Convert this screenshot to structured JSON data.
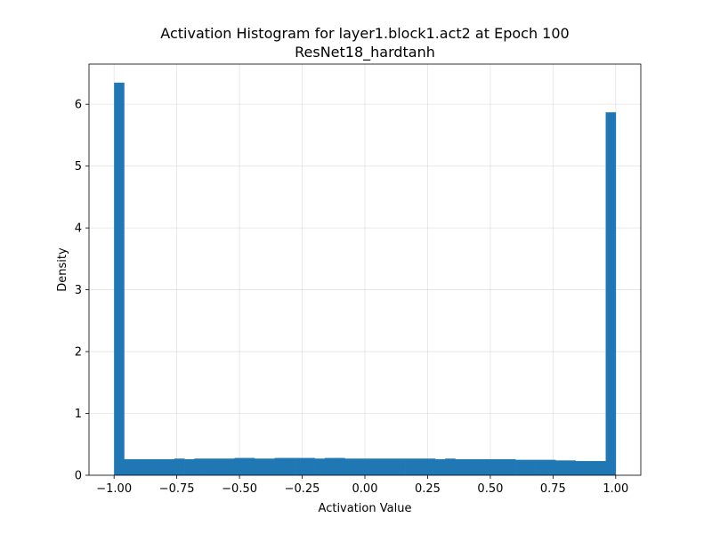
{
  "chart_data": {
    "type": "bar",
    "title": "Activation Histogram for layer1.block1.act2 at Epoch 100",
    "subtitle": "ResNet18_hardtanh",
    "xlabel": "Activation Value",
    "ylabel": "Density",
    "xlim": [
      -1.1,
      1.1
    ],
    "ylim": [
      0,
      6.65
    ],
    "xticks": [
      -1.0,
      -0.75,
      -0.5,
      -0.25,
      0.0,
      0.25,
      0.5,
      0.75,
      1.0
    ],
    "xtick_labels": [
      "−1.00",
      "−0.75",
      "−0.50",
      "−0.25",
      "0.00",
      "0.25",
      "0.50",
      "0.75",
      "1.00"
    ],
    "yticks": [
      0,
      1,
      2,
      3,
      4,
      5,
      6
    ],
    "ytick_labels": [
      "0",
      "1",
      "2",
      "3",
      "4",
      "5",
      "6"
    ],
    "grid": true,
    "bar_color": "#1f77b4",
    "bins": 50,
    "bin_range": [
      -1.0,
      1.0
    ],
    "density": [
      6.35,
      0.26,
      0.26,
      0.26,
      0.26,
      0.26,
      0.27,
      0.26,
      0.27,
      0.27,
      0.27,
      0.27,
      0.28,
      0.28,
      0.27,
      0.27,
      0.28,
      0.28,
      0.28,
      0.28,
      0.27,
      0.28,
      0.28,
      0.27,
      0.27,
      0.27,
      0.27,
      0.27,
      0.27,
      0.27,
      0.27,
      0.27,
      0.26,
      0.27,
      0.26,
      0.26,
      0.26,
      0.26,
      0.26,
      0.26,
      0.25,
      0.25,
      0.25,
      0.25,
      0.24,
      0.24,
      0.23,
      0.23,
      0.23,
      5.87
    ]
  }
}
